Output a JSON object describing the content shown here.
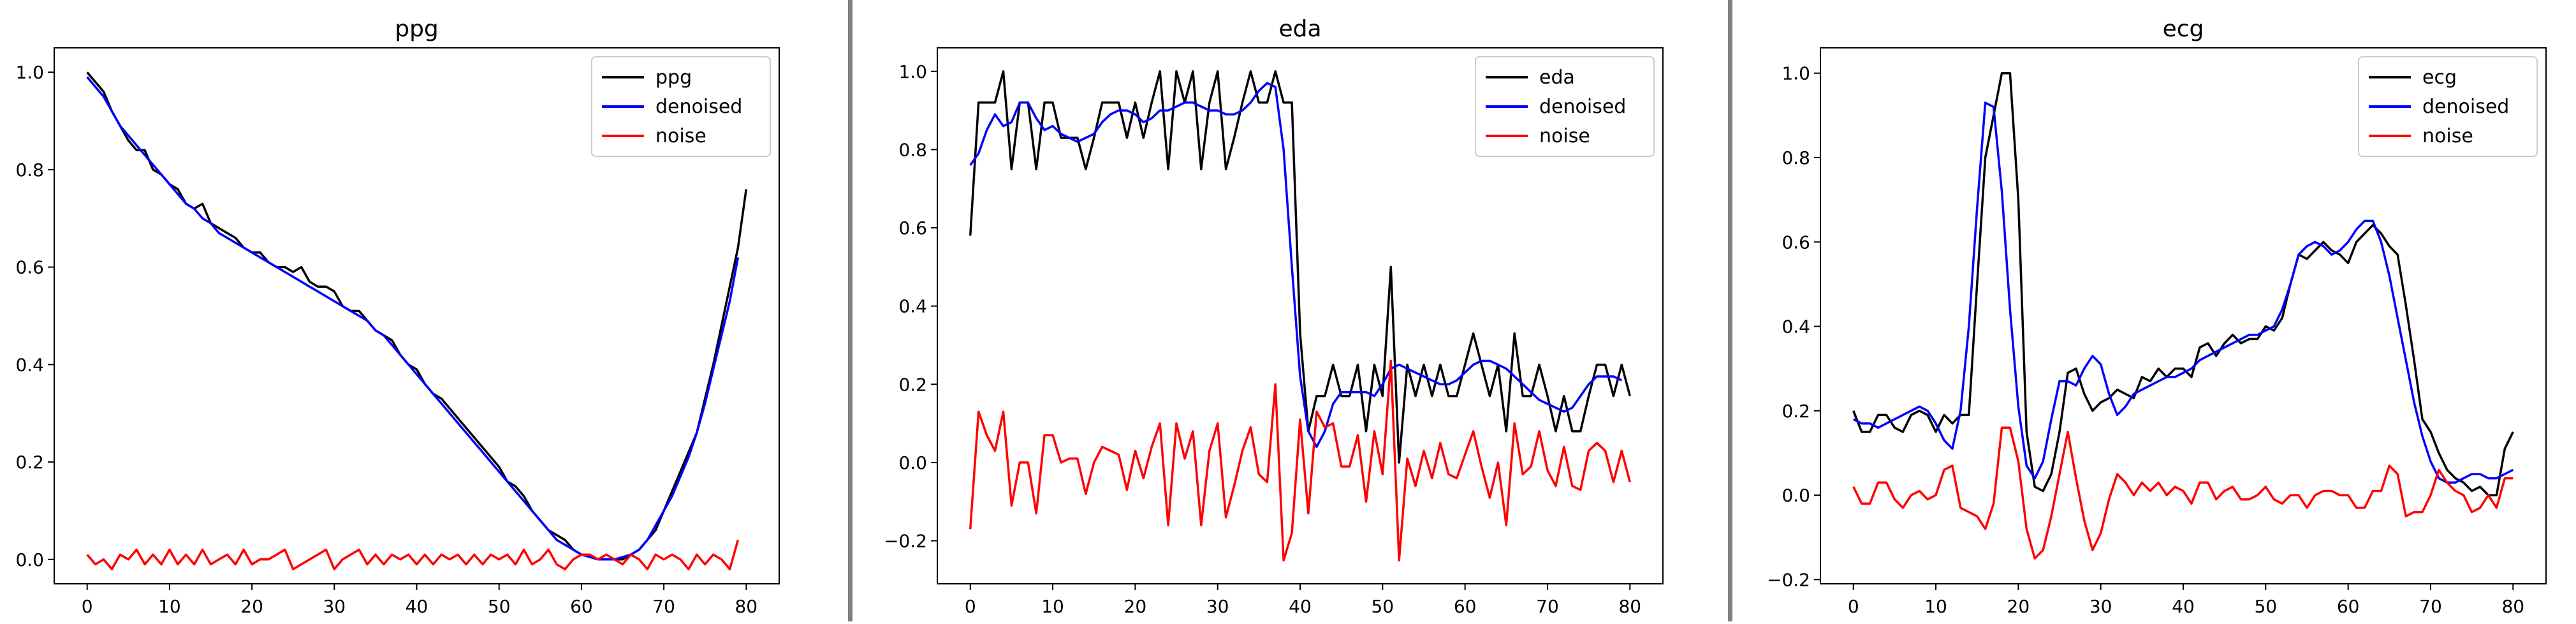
{
  "chart_data": [
    {
      "type": "line",
      "title": "ppg",
      "xlabel": "",
      "ylabel": "",
      "xlim": [
        -4,
        84
      ],
      "ylim": [
        -0.05,
        1.05
      ],
      "xticks": [
        "0",
        "10",
        "20",
        "30",
        "40",
        "50",
        "60",
        "70",
        "80"
      ],
      "yticks": [
        "0.0",
        "0.2",
        "0.4",
        "0.6",
        "0.8",
        "1.0"
      ],
      "legend_position": "top-right",
      "series": [
        {
          "name": "ppg",
          "color": "#000000",
          "values": [
            1.0,
            0.98,
            0.96,
            0.92,
            0.89,
            0.86,
            0.84,
            0.84,
            0.8,
            0.79,
            0.77,
            0.76,
            0.73,
            0.72,
            0.73,
            0.69,
            0.68,
            0.67,
            0.66,
            0.64,
            0.63,
            0.63,
            0.61,
            0.6,
            0.6,
            0.59,
            0.6,
            0.57,
            0.56,
            0.56,
            0.55,
            0.52,
            0.51,
            0.51,
            0.49,
            0.47,
            0.46,
            0.45,
            0.42,
            0.4,
            0.39,
            0.36,
            0.34,
            0.33,
            0.31,
            0.29,
            0.27,
            0.25,
            0.23,
            0.21,
            0.19,
            0.16,
            0.15,
            0.13,
            0.1,
            0.08,
            0.06,
            0.05,
            0.04,
            0.02,
            0.01,
            0.01,
            0.0,
            0.0,
            0.0,
            0.0,
            0.01,
            0.02,
            0.04,
            0.06,
            0.1,
            0.14,
            0.18,
            0.22,
            0.26,
            0.33,
            0.4,
            0.48,
            0.56,
            0.64,
            0.76
          ]
        },
        {
          "name": "denoised",
          "color": "#0000ff",
          "values": [
            0.99,
            0.97,
            0.95,
            0.92,
            0.89,
            0.87,
            0.85,
            0.83,
            0.81,
            0.79,
            0.77,
            0.75,
            0.73,
            0.72,
            0.7,
            0.69,
            0.67,
            0.66,
            0.65,
            0.64,
            0.63,
            0.62,
            0.61,
            0.6,
            0.59,
            0.58,
            0.57,
            0.56,
            0.55,
            0.54,
            0.53,
            0.52,
            0.51,
            0.5,
            0.49,
            0.47,
            0.46,
            0.44,
            0.42,
            0.4,
            0.38,
            0.36,
            0.34,
            0.32,
            0.3,
            0.28,
            0.26,
            0.24,
            0.22,
            0.2,
            0.18,
            0.16,
            0.14,
            0.12,
            0.1,
            0.08,
            0.06,
            0.04,
            0.03,
            0.02,
            0.01,
            0.005,
            0.0,
            0.0,
            0.0,
            0.005,
            0.01,
            0.02,
            0.04,
            0.07,
            0.1,
            0.13,
            0.17,
            0.21,
            0.26,
            0.32,
            0.39,
            0.46,
            0.53,
            0.62
          ]
        },
        {
          "name": "noise",
          "color": "#ff0000",
          "values": [
            0.01,
            -0.01,
            0.0,
            -0.02,
            0.01,
            0.0,
            0.02,
            -0.01,
            0.01,
            -0.01,
            0.02,
            -0.01,
            0.01,
            -0.01,
            0.02,
            -0.01,
            0.0,
            0.01,
            -0.01,
            0.02,
            -0.01,
            0.0,
            0.0,
            0.01,
            0.02,
            -0.02,
            -0.01,
            0.0,
            0.01,
            0.02,
            -0.02,
            0.0,
            0.01,
            0.02,
            -0.01,
            0.01,
            -0.01,
            0.01,
            0.0,
            0.01,
            -0.01,
            0.01,
            -0.01,
            0.01,
            0.0,
            0.01,
            -0.01,
            0.01,
            -0.01,
            0.01,
            0.0,
            0.01,
            -0.01,
            0.02,
            -0.01,
            0.0,
            0.02,
            -0.01,
            -0.02,
            0.0,
            0.01,
            0.01,
            0.0,
            0.01,
            0.0,
            -0.01,
            0.01,
            0.0,
            -0.02,
            0.01,
            0.0,
            0.01,
            0.0,
            -0.02,
            0.01,
            -0.01,
            0.01,
            0.0,
            -0.02,
            0.04
          ]
        }
      ]
    },
    {
      "type": "line",
      "title": "eda",
      "xlabel": "",
      "ylabel": "",
      "xlim": [
        -4,
        84
      ],
      "ylim": [
        -0.31,
        1.06
      ],
      "xticks": [
        "0",
        "10",
        "20",
        "30",
        "40",
        "50",
        "60",
        "70",
        "80"
      ],
      "yticks": [
        "−0.2",
        "0.0",
        "0.2",
        "0.4",
        "0.6",
        "0.8",
        "1.0"
      ],
      "legend_position": "top-right",
      "series": [
        {
          "name": "eda",
          "color": "#000000",
          "values": [
            0.58,
            0.92,
            0.92,
            0.92,
            1.0,
            0.75,
            0.92,
            0.92,
            0.75,
            0.92,
            0.92,
            0.83,
            0.83,
            0.83,
            0.75,
            0.83,
            0.92,
            0.92,
            0.92,
            0.83,
            0.92,
            0.83,
            0.92,
            1.0,
            0.75,
            1.0,
            0.92,
            1.0,
            0.75,
            0.92,
            1.0,
            0.75,
            0.83,
            0.92,
            1.0,
            0.92,
            0.92,
            1.0,
            0.92,
            0.92,
            0.33,
            0.08,
            0.17,
            0.17,
            0.25,
            0.17,
            0.17,
            0.25,
            0.08,
            0.25,
            0.17,
            0.5,
            0.0,
            0.25,
            0.17,
            0.25,
            0.17,
            0.25,
            0.17,
            0.17,
            0.25,
            0.33,
            0.25,
            0.17,
            0.25,
            0.08,
            0.33,
            0.17,
            0.17,
            0.25,
            0.17,
            0.08,
            0.17,
            0.08,
            0.08,
            0.17,
            0.25,
            0.25,
            0.17,
            0.25,
            0.17
          ]
        },
        {
          "name": "denoised",
          "color": "#0000ff",
          "values": [
            0.76,
            0.79,
            0.85,
            0.89,
            0.86,
            0.87,
            0.92,
            0.92,
            0.88,
            0.85,
            0.86,
            0.84,
            0.83,
            0.82,
            0.83,
            0.84,
            0.87,
            0.89,
            0.9,
            0.9,
            0.89,
            0.87,
            0.88,
            0.9,
            0.9,
            0.91,
            0.92,
            0.92,
            0.91,
            0.9,
            0.9,
            0.89,
            0.89,
            0.9,
            0.92,
            0.95,
            0.97,
            0.96,
            0.8,
            0.5,
            0.22,
            0.08,
            0.04,
            0.08,
            0.15,
            0.18,
            0.18,
            0.18,
            0.18,
            0.17,
            0.2,
            0.24,
            0.25,
            0.24,
            0.23,
            0.22,
            0.21,
            0.2,
            0.2,
            0.21,
            0.23,
            0.25,
            0.26,
            0.26,
            0.25,
            0.24,
            0.22,
            0.2,
            0.18,
            0.16,
            0.15,
            0.14,
            0.13,
            0.14,
            0.17,
            0.2,
            0.22,
            0.22,
            0.22,
            0.21
          ]
        },
        {
          "name": "noise",
          "color": "#ff0000",
          "values": [
            -0.17,
            0.13,
            0.07,
            0.03,
            0.13,
            -0.11,
            0.0,
            0.0,
            -0.13,
            0.07,
            0.07,
            0.0,
            0.01,
            0.01,
            -0.08,
            0.0,
            0.04,
            0.03,
            0.02,
            -0.07,
            0.03,
            -0.04,
            0.04,
            0.1,
            -0.16,
            0.1,
            0.01,
            0.08,
            -0.16,
            0.03,
            0.1,
            -0.14,
            -0.06,
            0.03,
            0.09,
            -0.03,
            -0.05,
            0.2,
            -0.25,
            -0.18,
            0.11,
            -0.13,
            0.13,
            0.09,
            0.1,
            -0.01,
            -0.01,
            0.07,
            -0.1,
            0.08,
            -0.03,
            0.26,
            -0.25,
            0.01,
            -0.06,
            0.03,
            -0.04,
            0.05,
            -0.03,
            -0.04,
            0.02,
            0.08,
            -0.01,
            -0.09,
            0.0,
            -0.16,
            0.1,
            -0.03,
            -0.01,
            0.08,
            -0.02,
            -0.06,
            0.04,
            -0.06,
            -0.07,
            0.03,
            0.05,
            0.03,
            -0.05,
            0.03,
            -0.05
          ]
        }
      ]
    },
    {
      "type": "line",
      "title": "ecg",
      "xlabel": "",
      "ylabel": "",
      "xlim": [
        -4,
        84
      ],
      "ylim": [
        -0.21,
        1.06
      ],
      "xticks": [
        "0",
        "10",
        "20",
        "30",
        "40",
        "50",
        "60",
        "70",
        "80"
      ],
      "yticks": [
        "−0.2",
        "0.0",
        "0.2",
        "0.4",
        "0.6",
        "0.8",
        "1.0"
      ],
      "legend_position": "top-right",
      "series": [
        {
          "name": "ecg",
          "color": "#000000",
          "values": [
            0.2,
            0.15,
            0.15,
            0.19,
            0.19,
            0.16,
            0.15,
            0.19,
            0.2,
            0.19,
            0.15,
            0.19,
            0.17,
            0.19,
            0.19,
            0.5,
            0.8,
            0.9,
            1.0,
            1.0,
            0.7,
            0.15,
            0.02,
            0.01,
            0.05,
            0.15,
            0.29,
            0.3,
            0.24,
            0.2,
            0.22,
            0.23,
            0.25,
            0.24,
            0.23,
            0.28,
            0.27,
            0.3,
            0.28,
            0.3,
            0.3,
            0.28,
            0.35,
            0.36,
            0.33,
            0.36,
            0.38,
            0.36,
            0.37,
            0.37,
            0.4,
            0.39,
            0.42,
            0.5,
            0.57,
            0.56,
            0.58,
            0.6,
            0.58,
            0.57,
            0.55,
            0.6,
            0.62,
            0.64,
            0.62,
            0.59,
            0.57,
            0.45,
            0.32,
            0.18,
            0.15,
            0.1,
            0.06,
            0.04,
            0.03,
            0.01,
            0.02,
            0.0,
            0.0,
            0.11,
            0.15
          ]
        },
        {
          "name": "denoised",
          "color": "#0000ff",
          "values": [
            0.18,
            0.17,
            0.17,
            0.16,
            0.17,
            0.18,
            0.19,
            0.2,
            0.21,
            0.2,
            0.17,
            0.13,
            0.11,
            0.2,
            0.4,
            0.68,
            0.93,
            0.92,
            0.72,
            0.44,
            0.21,
            0.07,
            0.04,
            0.08,
            0.18,
            0.27,
            0.27,
            0.26,
            0.3,
            0.33,
            0.31,
            0.24,
            0.19,
            0.21,
            0.24,
            0.25,
            0.26,
            0.27,
            0.28,
            0.28,
            0.29,
            0.3,
            0.32,
            0.33,
            0.34,
            0.35,
            0.36,
            0.37,
            0.38,
            0.38,
            0.39,
            0.4,
            0.44,
            0.5,
            0.57,
            0.59,
            0.6,
            0.59,
            0.57,
            0.58,
            0.6,
            0.63,
            0.65,
            0.65,
            0.6,
            0.52,
            0.42,
            0.32,
            0.22,
            0.14,
            0.08,
            0.04,
            0.03,
            0.03,
            0.04,
            0.05,
            0.05,
            0.04,
            0.04,
            0.05,
            0.06
          ]
        },
        {
          "name": "noise",
          "color": "#ff0000",
          "values": [
            0.02,
            -0.02,
            -0.02,
            0.03,
            0.03,
            -0.01,
            -0.03,
            0.0,
            0.01,
            -0.01,
            0.0,
            0.06,
            0.07,
            -0.03,
            -0.04,
            -0.05,
            -0.08,
            -0.02,
            0.16,
            0.16,
            0.08,
            -0.08,
            -0.15,
            -0.13,
            -0.05,
            0.05,
            0.15,
            0.04,
            -0.06,
            -0.13,
            -0.09,
            -0.01,
            0.05,
            0.03,
            0.0,
            0.03,
            0.01,
            0.03,
            0.0,
            0.02,
            0.01,
            -0.02,
            0.03,
            0.03,
            -0.01,
            0.01,
            0.02,
            -0.01,
            -0.01,
            0.0,
            0.02,
            -0.01,
            -0.02,
            0.0,
            0.0,
            -0.03,
            0.0,
            0.01,
            0.01,
            0.0,
            0.0,
            -0.03,
            -0.03,
            0.01,
            0.01,
            0.07,
            0.05,
            -0.05,
            -0.04,
            -0.04,
            0.0,
            0.06,
            0.03,
            0.01,
            0.0,
            -0.04,
            -0.03,
            0.0,
            -0.03,
            0.04,
            0.04
          ]
        }
      ]
    }
  ]
}
